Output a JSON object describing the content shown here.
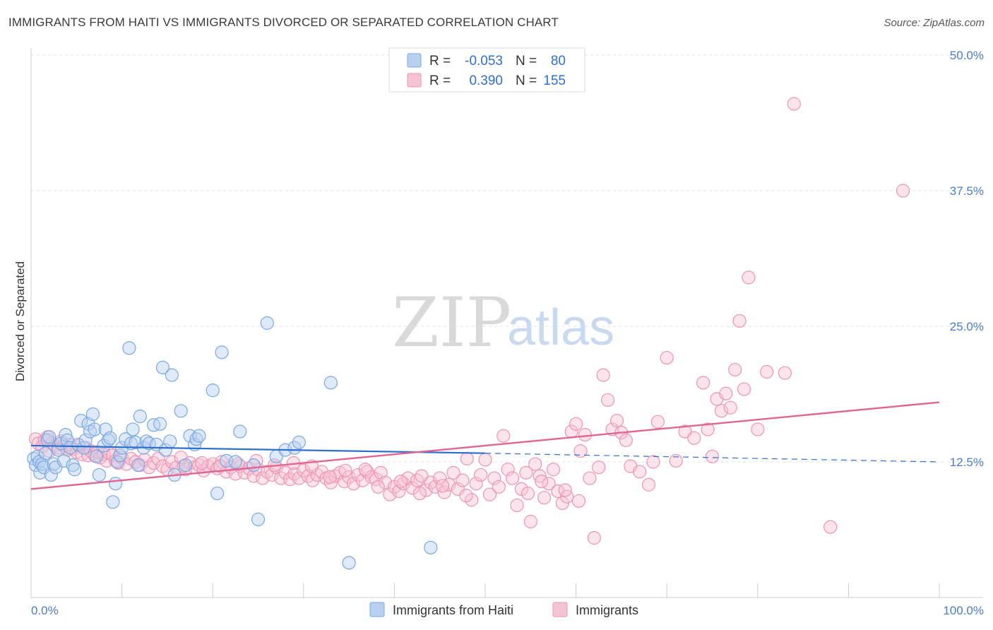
{
  "title": "IMMIGRANTS FROM HAITI VS IMMIGRANTS DIVORCED OR SEPARATED CORRELATION CHART",
  "source": "Source: ZipAtlas.com",
  "watermark": {
    "zip": "ZIP",
    "atlas": "atlas"
  },
  "colors": {
    "blue": "#7aa7e0",
    "blue_line": "#2f6fd0",
    "pink": "#ee93b3",
    "pink_line": "#e06592",
    "grid": "#e3e3e3"
  },
  "legend": {
    "r_label": "R =",
    "n_label": "N =",
    "rows": [
      {
        "r": "-0.053",
        "n": "80"
      },
      {
        "r": "0.390",
        "n": "155"
      }
    ]
  },
  "chart_data": {
    "type": "scatter",
    "title": "IMMIGRANTS FROM HAITI VS IMMIGRANTS DIVORCED OR SEPARATED CORRELATION CHART",
    "xlabel": "",
    "ylabel": "Divorced or Separated",
    "xlim": [
      0,
      100
    ],
    "ylim": [
      0,
      50
    ],
    "x_tick_labels": [
      "0.0%",
      "100.0%"
    ],
    "y_ticks": [
      12.5,
      25.0,
      37.5,
      50.0
    ],
    "y_tick_labels": [
      "12.5%",
      "25.0%",
      "37.5%",
      "50.0%"
    ],
    "grid": true,
    "legend_placement": "bottom-center",
    "series": [
      {
        "name": "Immigrants from Haiti",
        "trend": {
          "x": [
            0,
            50
          ],
          "y": [
            14.0,
            13.3
          ],
          "dashed_to": [
            100,
            12.5
          ]
        },
        "points": [
          [
            0.3,
            12.8
          ],
          [
            0.5,
            12.2
          ],
          [
            0.7,
            13.0
          ],
          [
            0.9,
            12.5
          ],
          [
            1.0,
            11.5
          ],
          [
            1.2,
            12.3
          ],
          [
            1.4,
            12.0
          ],
          [
            1.6,
            13.3
          ],
          [
            1.8,
            14.5
          ],
          [
            2.0,
            14.8
          ],
          [
            2.2,
            11.3
          ],
          [
            2.5,
            12.3
          ],
          [
            2.7,
            12.0
          ],
          [
            3.0,
            13.6
          ],
          [
            3.3,
            14.2
          ],
          [
            3.6,
            12.6
          ],
          [
            3.8,
            15.0
          ],
          [
            4.0,
            14.5
          ],
          [
            4.3,
            13.8
          ],
          [
            4.6,
            12.2
          ],
          [
            4.8,
            11.8
          ],
          [
            5.2,
            14.1
          ],
          [
            5.5,
            16.3
          ],
          [
            5.8,
            13.8
          ],
          [
            6.0,
            14.5
          ],
          [
            6.3,
            16.0
          ],
          [
            6.5,
            15.3
          ],
          [
            6.8,
            16.9
          ],
          [
            7.0,
            15.5
          ],
          [
            7.2,
            13.0
          ],
          [
            7.5,
            11.3
          ],
          [
            8.0,
            14.0
          ],
          [
            8.2,
            15.5
          ],
          [
            8.5,
            14.5
          ],
          [
            8.7,
            14.7
          ],
          [
            9.0,
            8.8
          ],
          [
            9.3,
            10.5
          ],
          [
            9.5,
            12.5
          ],
          [
            9.8,
            13.1
          ],
          [
            10.0,
            13.8
          ],
          [
            10.4,
            14.6
          ],
          [
            10.8,
            23.0
          ],
          [
            11.0,
            14.2
          ],
          [
            11.2,
            15.5
          ],
          [
            11.5,
            14.3
          ],
          [
            11.8,
            12.2
          ],
          [
            12.0,
            16.7
          ],
          [
            12.4,
            13.8
          ],
          [
            12.7,
            14.4
          ],
          [
            13.0,
            14.2
          ],
          [
            13.5,
            15.9
          ],
          [
            13.8,
            14.1
          ],
          [
            14.2,
            16.0
          ],
          [
            14.5,
            21.2
          ],
          [
            14.8,
            13.6
          ],
          [
            15.3,
            14.4
          ],
          [
            15.5,
            20.5
          ],
          [
            15.8,
            11.3
          ],
          [
            16.5,
            17.2
          ],
          [
            17.0,
            12.2
          ],
          [
            17.5,
            14.9
          ],
          [
            18.0,
            14.1
          ],
          [
            18.2,
            14.6
          ],
          [
            18.5,
            14.9
          ],
          [
            20.0,
            19.1
          ],
          [
            20.5,
            9.6
          ],
          [
            21.0,
            22.6
          ],
          [
            21.5,
            12.6
          ],
          [
            22.5,
            12.5
          ],
          [
            23.0,
            15.3
          ],
          [
            24.5,
            12.2
          ],
          [
            25.0,
            7.2
          ],
          [
            26.0,
            25.3
          ],
          [
            27.0,
            13.0
          ],
          [
            28.0,
            13.6
          ],
          [
            29.0,
            13.8
          ],
          [
            29.5,
            14.3
          ],
          [
            33.0,
            19.8
          ],
          [
            35.0,
            3.2
          ],
          [
            44.0,
            4.6
          ]
        ]
      },
      {
        "name": "Immigrants",
        "trend": {
          "x": [
            0,
            100
          ],
          "y": [
            10.0,
            18.0
          ]
        },
        "points": [
          [
            0.5,
            14.6
          ],
          [
            0.8,
            14.2
          ],
          [
            1.2,
            13.9
          ],
          [
            1.5,
            14.5
          ],
          [
            1.8,
            14.8
          ],
          [
            2.0,
            13.5
          ],
          [
            2.3,
            14.2
          ],
          [
            2.6,
            14.0
          ],
          [
            3.0,
            13.8
          ],
          [
            3.3,
            14.4
          ],
          [
            3.6,
            14.0
          ],
          [
            4.0,
            13.6
          ],
          [
            4.3,
            14.1
          ],
          [
            4.6,
            13.7
          ],
          [
            5.0,
            13.4
          ],
          [
            5.3,
            14.0
          ],
          [
            5.6,
            13.2
          ],
          [
            6.0,
            13.8
          ],
          [
            6.3,
            13.1
          ],
          [
            6.6,
            13.5
          ],
          [
            7.0,
            13.1
          ],
          [
            7.3,
            13.4
          ],
          [
            7.6,
            12.9
          ],
          [
            8.0,
            13.2
          ],
          [
            8.3,
            12.6
          ],
          [
            8.6,
            13.3
          ],
          [
            9.0,
            13.1
          ],
          [
            9.3,
            12.6
          ],
          [
            9.6,
            12.4
          ],
          [
            10.0,
            12.9
          ],
          [
            10.5,
            12.3
          ],
          [
            11.0,
            12.8
          ],
          [
            11.5,
            12.5
          ],
          [
            12.0,
            12.2
          ],
          [
            12.5,
            12.7
          ],
          [
            13.0,
            12.0
          ],
          [
            13.5,
            12.4
          ],
          [
            14.0,
            12.8
          ],
          [
            14.5,
            12.1
          ],
          [
            15.0,
            11.8
          ],
          [
            15.5,
            12.5
          ],
          [
            16.0,
            12.0
          ],
          [
            16.5,
            12.9
          ],
          [
            17.0,
            11.8
          ],
          [
            17.5,
            12.4
          ],
          [
            18.0,
            12.0
          ],
          [
            18.5,
            12.2
          ],
          [
            19.0,
            11.7
          ],
          [
            19.5,
            12.1
          ],
          [
            20.0,
            12.3
          ],
          [
            20.5,
            11.9
          ],
          [
            21.0,
            12.5
          ],
          [
            21.5,
            11.6
          ],
          [
            22.0,
            12.0
          ],
          [
            22.5,
            11.4
          ],
          [
            23.0,
            12.1
          ],
          [
            23.5,
            11.5
          ],
          [
            24.0,
            11.9
          ],
          [
            24.5,
            11.2
          ],
          [
            25.0,
            11.8
          ],
          [
            25.5,
            11.0
          ],
          [
            26.0,
            11.6
          ],
          [
            26.5,
            11.3
          ],
          [
            27.0,
            12.0
          ],
          [
            27.5,
            11.0
          ],
          [
            28.0,
            11.5
          ],
          [
            28.5,
            10.9
          ],
          [
            29.0,
            11.4
          ],
          [
            29.5,
            11.0
          ],
          [
            30.0,
            11.7
          ],
          [
            30.5,
            11.2
          ],
          [
            31.0,
            10.8
          ],
          [
            31.5,
            11.3
          ],
          [
            32.0,
            11.6
          ],
          [
            32.5,
            11.0
          ],
          [
            33.0,
            10.6
          ],
          [
            33.5,
            11.2
          ],
          [
            34.0,
            11.5
          ],
          [
            34.5,
            10.7
          ],
          [
            35.0,
            11.1
          ],
          [
            35.5,
            10.5
          ],
          [
            36.0,
            11.3
          ],
          [
            36.5,
            10.8
          ],
          [
            37.0,
            11.6
          ],
          [
            37.5,
            11.1
          ],
          [
            38.0,
            10.9
          ],
          [
            38.5,
            11.5
          ],
          [
            39.0,
            10.6
          ],
          [
            39.5,
            9.5
          ],
          [
            40.0,
            10.2
          ],
          [
            40.5,
            9.8
          ],
          [
            41.0,
            10.5
          ],
          [
            41.5,
            11.0
          ],
          [
            42.0,
            10.1
          ],
          [
            42.5,
            10.8
          ],
          [
            43.0,
            11.2
          ],
          [
            43.5,
            9.9
          ],
          [
            44.0,
            10.6
          ],
          [
            44.5,
            10.2
          ],
          [
            45.0,
            11.0
          ],
          [
            45.5,
            9.7
          ],
          [
            46.0,
            10.4
          ],
          [
            46.5,
            11.5
          ],
          [
            47.0,
            10.0
          ],
          [
            47.5,
            10.8
          ],
          [
            48.0,
            12.8
          ],
          [
            48.5,
            9.0
          ],
          [
            49.0,
            10.5
          ],
          [
            49.5,
            11.3
          ],
          [
            50.0,
            12.7
          ],
          [
            50.5,
            9.5
          ],
          [
            51.0,
            11.0
          ],
          [
            51.5,
            10.2
          ],
          [
            52.0,
            14.9
          ],
          [
            52.5,
            11.8
          ],
          [
            53.0,
            11.0
          ],
          [
            53.5,
            8.5
          ],
          [
            54.0,
            10.0
          ],
          [
            54.5,
            11.5
          ],
          [
            55.0,
            7.0
          ],
          [
            55.5,
            12.3
          ],
          [
            56.0,
            11.2
          ],
          [
            56.5,
            9.2
          ],
          [
            57.0,
            10.5
          ],
          [
            57.5,
            11.8
          ],
          [
            58.0,
            9.8
          ],
          [
            58.5,
            8.7
          ],
          [
            59.0,
            9.3
          ],
          [
            59.5,
            15.3
          ],
          [
            60.0,
            16.0
          ],
          [
            60.5,
            13.5
          ],
          [
            61.0,
            15.0
          ],
          [
            61.5,
            11.0
          ],
          [
            62.0,
            5.5
          ],
          [
            62.5,
            12.0
          ],
          [
            63.0,
            20.5
          ],
          [
            63.5,
            18.2
          ],
          [
            64.0,
            15.5
          ],
          [
            64.5,
            16.3
          ],
          [
            65.0,
            15.2
          ],
          [
            65.5,
            14.5
          ],
          [
            66.0,
            12.1
          ],
          [
            67.0,
            11.6
          ],
          [
            68.0,
            10.4
          ],
          [
            68.5,
            12.5
          ],
          [
            69.0,
            16.2
          ],
          [
            70.0,
            22.1
          ],
          [
            71.0,
            12.6
          ],
          [
            72.0,
            15.3
          ],
          [
            73.0,
            14.7
          ],
          [
            74.0,
            19.8
          ],
          [
            74.5,
            15.5
          ],
          [
            75.0,
            13.0
          ],
          [
            75.5,
            18.3
          ],
          [
            76.0,
            17.2
          ],
          [
            76.5,
            18.8
          ],
          [
            77.0,
            17.5
          ],
          [
            77.5,
            21.0
          ],
          [
            78.0,
            25.5
          ],
          [
            78.5,
            19.2
          ],
          [
            79.0,
            29.5
          ],
          [
            80.0,
            15.5
          ],
          [
            81.0,
            20.8
          ],
          [
            83.0,
            20.7
          ],
          [
            84.0,
            45.5
          ],
          [
            88.0,
            6.5
          ],
          [
            96.0,
            37.5
          ],
          [
            60.3,
            8.9
          ],
          [
            58.8,
            9.9
          ],
          [
            56.2,
            10.7
          ],
          [
            54.7,
            9.6
          ],
          [
            47.9,
            9.4
          ],
          [
            45.3,
            10.3
          ],
          [
            42.8,
            9.6
          ],
          [
            40.7,
            10.7
          ],
          [
            38.2,
            10.2
          ],
          [
            36.8,
            11.8
          ],
          [
            34.6,
            11.7
          ],
          [
            32.9,
            11.1
          ],
          [
            30.9,
            12.1
          ],
          [
            28.9,
            12.4
          ],
          [
            26.8,
            12.2
          ],
          [
            24.8,
            12.6
          ],
          [
            22.8,
            12.3
          ],
          [
            20.8,
            12.1
          ],
          [
            18.8,
            12.4
          ],
          [
            16.8,
            12.1
          ]
        ]
      }
    ]
  },
  "bottom_legend": [
    "Immigrants from Haiti",
    "Immigrants"
  ]
}
